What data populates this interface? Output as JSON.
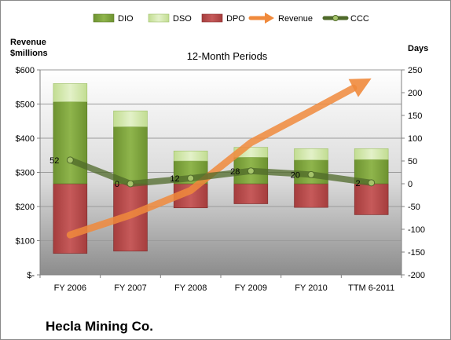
{
  "chart_data": {
    "type": "bar",
    "title": "12-Month Periods",
    "company": "Hecla Mining Co.",
    "left_axis_label_line1": "Revenue",
    "left_axis_label_line2": "$millions",
    "right_axis_label": "Days",
    "categories": [
      "FY 2006",
      "FY 2007",
      "FY 2008",
      "FY 2009",
      "FY 2010",
      "TTM 6-2011"
    ],
    "left_ticks": [
      "$-",
      "$100",
      "$200",
      "$300",
      "$400",
      "$500",
      "$600"
    ],
    "left_tick_values": [
      0,
      100,
      200,
      300,
      400,
      500,
      600
    ],
    "ylim_left": [
      0,
      600
    ],
    "right_ticks": [
      "-200",
      "-150",
      "-100",
      "-50",
      "0",
      "50",
      "100",
      "150",
      "200",
      "250"
    ],
    "right_tick_values": [
      -200,
      -150,
      -100,
      -50,
      0,
      50,
      100,
      150,
      200,
      250
    ],
    "ylim_right": [
      -200,
      250
    ],
    "grid": true,
    "legend_position": "top",
    "legend": [
      {
        "name": "DIO",
        "kind": "bar",
        "color": "#7da33b"
      },
      {
        "name": "DSO",
        "kind": "bar",
        "color": "#d4e8ad"
      },
      {
        "name": "DPO",
        "kind": "bar",
        "color": "#b84c4c"
      },
      {
        "name": "Revenue",
        "kind": "arrow",
        "color": "#f08a3c"
      },
      {
        "name": "CCC",
        "kind": "line-marker",
        "color": "#4f6a2a"
      }
    ],
    "series": [
      {
        "name": "DIO",
        "axis": "right",
        "stacked_above_zero": true,
        "values": [
          180,
          125,
          50,
          58,
          52,
          53
        ]
      },
      {
        "name": "DSO",
        "axis": "right",
        "stacked_above_zero": true,
        "values": [
          40,
          35,
          22,
          22,
          25,
          24
        ]
      },
      {
        "name": "DPO",
        "axis": "right",
        "stacked_below_zero": true,
        "values": [
          153,
          148,
          53,
          44,
          52,
          68
        ]
      },
      {
        "name": "Revenue",
        "axis": "left",
        "values": [
          117,
          175,
          247,
          387,
          480,
          575
        ]
      },
      {
        "name": "CCC",
        "axis": "right",
        "values": [
          52,
          0,
          12,
          28,
          20,
          2
        ],
        "labels": [
          "52",
          "0",
          "12",
          "28",
          "20",
          "2"
        ]
      }
    ]
  }
}
